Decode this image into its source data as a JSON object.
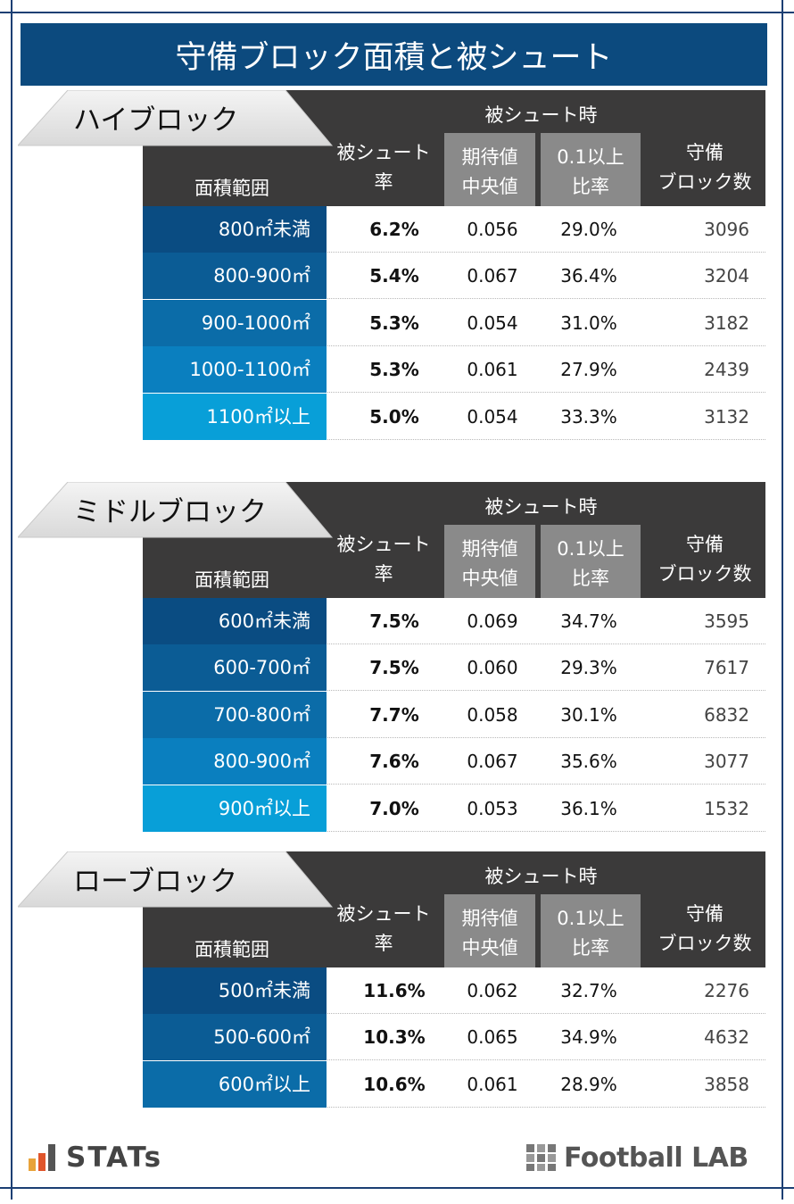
{
  "title": "守備ブロック面積と被シュート",
  "headers": {
    "group": "被シュート時",
    "range": "面積範囲",
    "rate": [
      "被シュート",
      "率"
    ],
    "median": [
      "期待値",
      "中央値"
    ],
    "ratio": [
      "0.1以上",
      "比率"
    ],
    "count": [
      "守備",
      "ブロック数"
    ]
  },
  "chart_data": [
    {
      "type": "table",
      "title": "ハイブロック",
      "rows": [
        {
          "range": "800㎡未満",
          "shot_rate": "6.2%",
          "xg_median": "0.056",
          "ratio_01": "29.0%",
          "blocks": "3096"
        },
        {
          "range": "800-900㎡",
          "shot_rate": "5.4%",
          "xg_median": "0.067",
          "ratio_01": "36.4%",
          "blocks": "3204"
        },
        {
          "range": "900-1000㎡",
          "shot_rate": "5.3%",
          "xg_median": "0.054",
          "ratio_01": "31.0%",
          "blocks": "3182"
        },
        {
          "range": "1000-1100㎡",
          "shot_rate": "5.3%",
          "xg_median": "0.061",
          "ratio_01": "27.9%",
          "blocks": "2439"
        },
        {
          "range": "1100㎡以上",
          "shot_rate": "5.0%",
          "xg_median": "0.054",
          "ratio_01": "33.3%",
          "blocks": "3132"
        }
      ]
    },
    {
      "type": "table",
      "title": "ミドルブロック",
      "rows": [
        {
          "range": "600㎡未満",
          "shot_rate": "7.5%",
          "xg_median": "0.069",
          "ratio_01": "34.7%",
          "blocks": "3595"
        },
        {
          "range": "600-700㎡",
          "shot_rate": "7.5%",
          "xg_median": "0.060",
          "ratio_01": "29.3%",
          "blocks": "7617"
        },
        {
          "range": "700-800㎡",
          "shot_rate": "7.7%",
          "xg_median": "0.058",
          "ratio_01": "30.1%",
          "blocks": "6832"
        },
        {
          "range": "800-900㎡",
          "shot_rate": "7.6%",
          "xg_median": "0.067",
          "ratio_01": "35.6%",
          "blocks": "3077"
        },
        {
          "range": "900㎡以上",
          "shot_rate": "7.0%",
          "xg_median": "0.053",
          "ratio_01": "36.1%",
          "blocks": "1532"
        }
      ]
    },
    {
      "type": "table",
      "title": "ローブロック",
      "rows": [
        {
          "range": "500㎡未満",
          "shot_rate": "11.6%",
          "xg_median": "0.062",
          "ratio_01": "32.7%",
          "blocks": "2276"
        },
        {
          "range": "500-600㎡",
          "shot_rate": "10.3%",
          "xg_median": "0.065",
          "ratio_01": "34.9%",
          "blocks": "4632"
        },
        {
          "range": "600㎡以上",
          "shot_rate": "10.6%",
          "xg_median": "0.061",
          "ratio_01": "28.9%",
          "blocks": "3858"
        }
      ]
    }
  ],
  "colors": {
    "title_bg": "#0c4a7e",
    "header_bg": "#3b3a3a",
    "header_grey": "#8a8a8a",
    "range_shades": [
      "#0a4c82",
      "#0b5c95",
      "#0b6ca8",
      "#0a7fbf",
      "#089fd8"
    ]
  },
  "footer": {
    "left_logo": "STATs",
    "right_logo": "Football LAB"
  }
}
